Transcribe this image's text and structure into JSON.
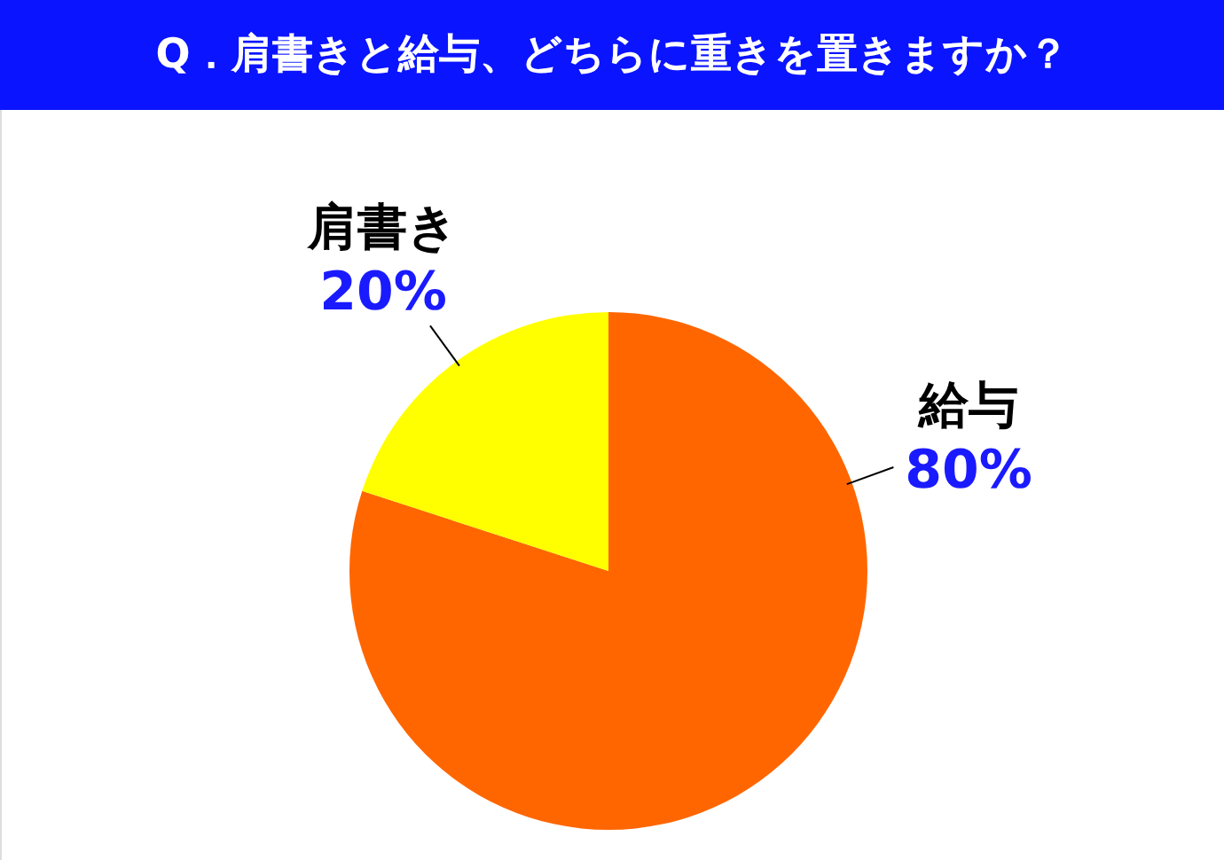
{
  "chart_data": {
    "type": "pie",
    "title": "Q．肩書きと給与、どちらに重きを置きますか？",
    "categories": [
      "給与",
      "肩書き"
    ],
    "values": [
      80,
      20
    ],
    "colors": [
      "#ff6600",
      "#ffff00"
    ],
    "value_labels": [
      "80%",
      "20%"
    ]
  }
}
